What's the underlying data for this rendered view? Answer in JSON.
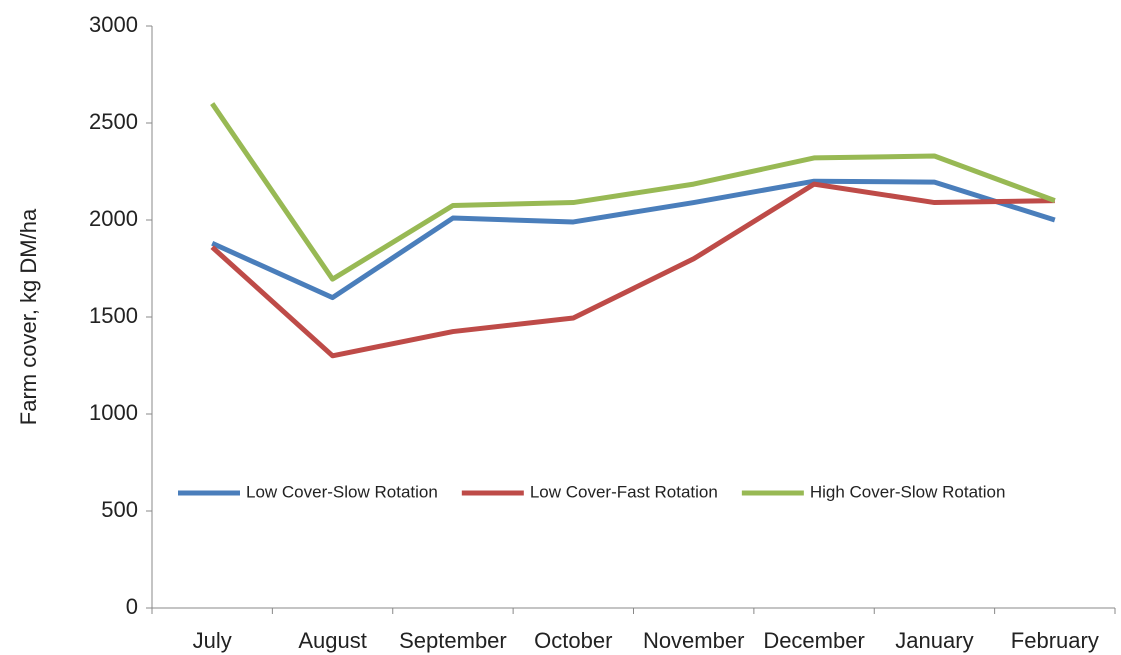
{
  "chart_data": {
    "type": "line",
    "y_label": "Farm cover, kg DM/ha",
    "categories": [
      "July",
      "August",
      "September",
      "October",
      "November",
      "December",
      "January",
      "February"
    ],
    "series": [
      {
        "name": "Low Cover-Slow Rotation",
        "color": "#4a7ebb",
        "values": [
          1880,
          1600,
          2010,
          1990,
          2090,
          2200,
          2195,
          2000
        ]
      },
      {
        "name": "Low Cover-Fast Rotation",
        "color": "#be4b48",
        "values": [
          1860,
          1300,
          1425,
          1495,
          1800,
          2185,
          2090,
          2100
        ]
      },
      {
        "name": "High Cover-Slow Rotation",
        "color": "#98b954",
        "values": [
          2600,
          1695,
          2075,
          2090,
          2185,
          2320,
          2330,
          2100
        ]
      }
    ],
    "ylim": [
      0,
      3000
    ],
    "yticks": [
      0,
      500,
      1000,
      1500,
      2000,
      2500,
      3000
    ],
    "grid": false,
    "legend": "center"
  }
}
